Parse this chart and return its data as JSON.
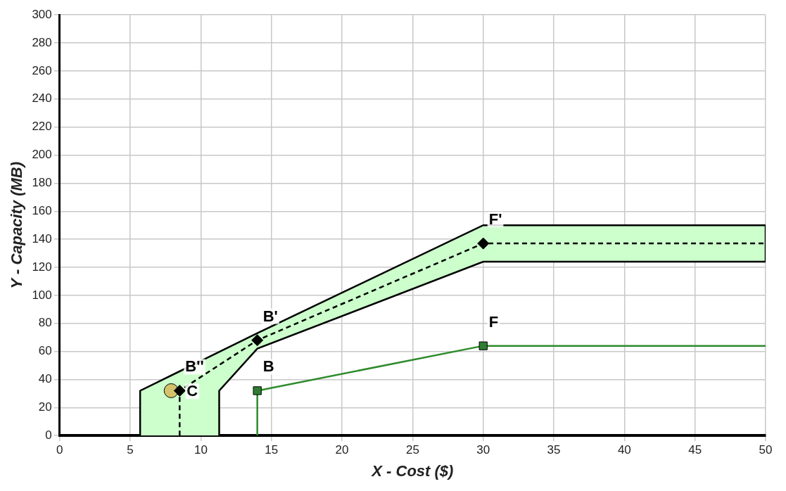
{
  "chart_data": {
    "type": "line",
    "xlabel": "X - Cost ($)",
    "ylabel": "Y - Capacity (MB)",
    "xlim": [
      0,
      50
    ],
    "xticks": [
      0,
      5,
      10,
      15,
      20,
      25,
      30,
      35,
      40,
      45,
      50
    ],
    "ylim": [
      0,
      300
    ],
    "yticks": [
      0,
      20,
      40,
      60,
      80,
      100,
      120,
      140,
      160,
      180,
      200,
      220,
      240,
      260,
      280,
      300
    ],
    "grid": true,
    "legend": false,
    "series": [
      {
        "type": "area",
        "color": "#ccffcc",
        "x": [
          5.7,
          5.7,
          14,
          30,
          50,
          50,
          30,
          14,
          11.3,
          11.3
        ],
        "values": [
          0,
          32,
          73,
          150,
          150,
          124,
          124,
          62,
          32,
          0
        ]
      },
      {
        "color": "#000000",
        "line_style": "dashed",
        "marker": "none",
        "x": [
          8.5,
          8.5,
          14,
          30,
          50
        ],
        "values": [
          0,
          32,
          68,
          137,
          137
        ]
      },
      {
        "type": "scatter",
        "color": "#000000",
        "marker": "diamond",
        "x": [
          8.5,
          14,
          30
        ],
        "values": [
          32,
          68,
          137
        ]
      },
      {
        "color": "#2e8b2e",
        "line_style": "solid",
        "marker": "none",
        "x": [
          14,
          14,
          30,
          50
        ],
        "values": [
          0,
          32,
          64,
          64
        ]
      },
      {
        "type": "scatter",
        "color": "#2e7d32",
        "marker": "square",
        "x": [
          14,
          30
        ],
        "values": [
          32,
          64
        ]
      },
      {
        "type": "scatter",
        "color": "#d4c26a",
        "marker": "circle",
        "x": [
          7.9
        ],
        "values": [
          32
        ]
      }
    ],
    "annotations": [
      {
        "text": "B''",
        "x": 8.5,
        "y": 32
      },
      {
        "text": "B'",
        "x": 14,
        "y": 68
      },
      {
        "text": "F'",
        "x": 30,
        "y": 137
      },
      {
        "text": "B",
        "x": 14,
        "y": 32
      },
      {
        "text": "F",
        "x": 30,
        "y": 64
      },
      {
        "text": "C",
        "x": 7.9,
        "y": 32
      }
    ]
  }
}
